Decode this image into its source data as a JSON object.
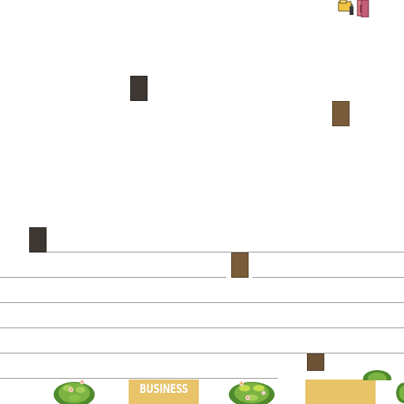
{
  "scene": {
    "business_sign": {
      "label": "BUSINESS"
    },
    "blank_sign": {
      "label": ""
    },
    "icons": [
      "folder-icon",
      "book-stand-icon"
    ]
  }
}
